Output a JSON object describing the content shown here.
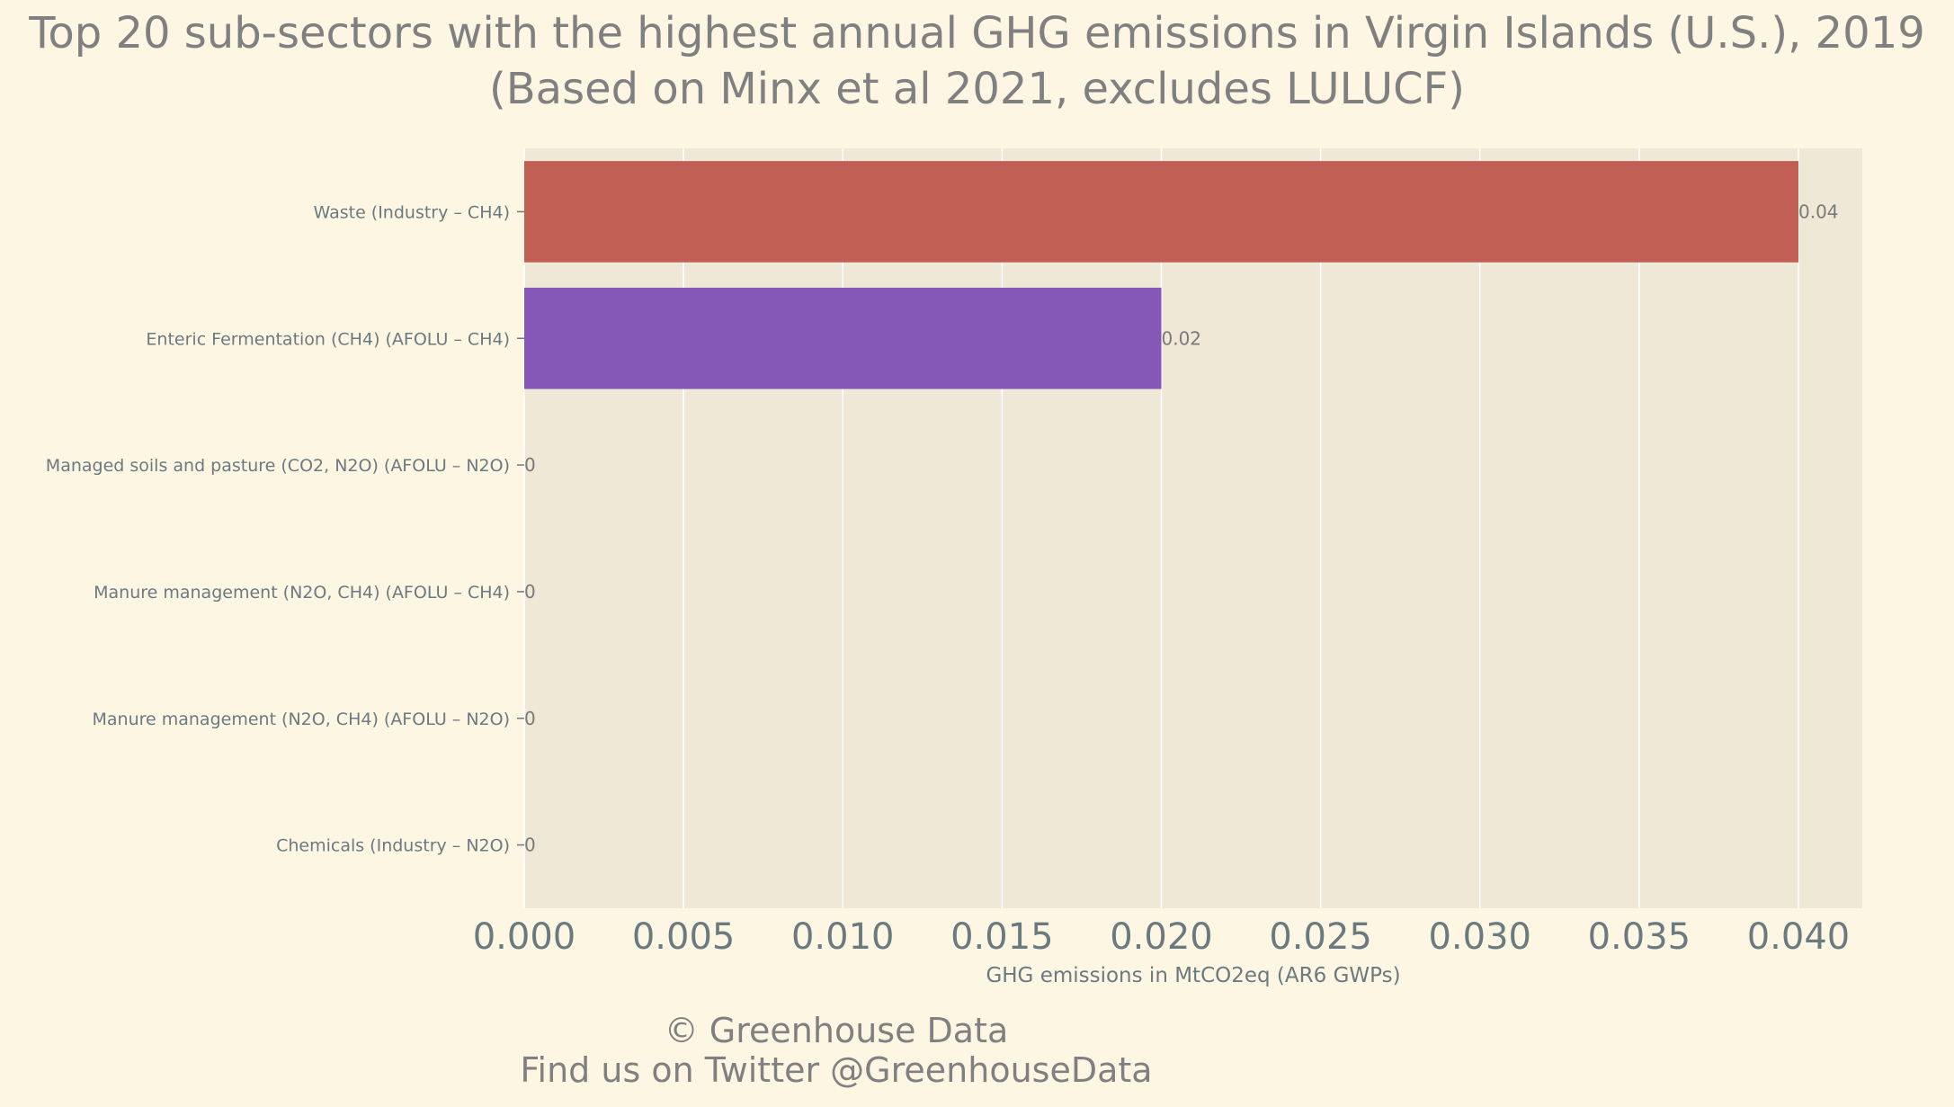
{
  "chart_data": {
    "type": "bar",
    "orientation": "horizontal",
    "title": "Top 20 sub-sectors with the highest annual GHG emissions in Virgin Islands (U.S.), 2019",
    "subtitle": "(Based on Minx et al 2021, excludes LULUCF)",
    "xlabel": "GHG emissions in MtCO2eq (AR6 GWPs)",
    "ylabel": "",
    "xlim": [
      0,
      0.042
    ],
    "xticks": [
      "0.000",
      "0.005",
      "0.010",
      "0.015",
      "0.020",
      "0.025",
      "0.030",
      "0.035",
      "0.040"
    ],
    "grid": true,
    "categories": [
      "Waste (Industry – CH4)",
      "Enteric Fermentation (CH4) (AFOLU – CH4)",
      "Managed soils and pasture (CO2, N2O) (AFOLU – N2O)",
      "Manure management (N2O, CH4) (AFOLU – CH4)",
      "Manure management (N2O, CH4) (AFOLU – N2O)",
      "Chemicals (Industry – N2O)"
    ],
    "values": [
      0.04,
      0.02,
      0,
      0,
      0,
      0
    ],
    "data_labels": [
      "0.04",
      "0.02",
      "0",
      "0",
      "0",
      "0"
    ],
    "colors": [
      "#c25f55",
      "#8558b8",
      "#4a90c2",
      "#5aa469",
      "#d9a441",
      "#999999"
    ],
    "plot_background": "#efe8d6",
    "page_background": "#fdf6e3"
  },
  "footer": {
    "line1": "© Greenhouse Data",
    "line2": "Find us on Twitter @GreenhouseData"
  }
}
